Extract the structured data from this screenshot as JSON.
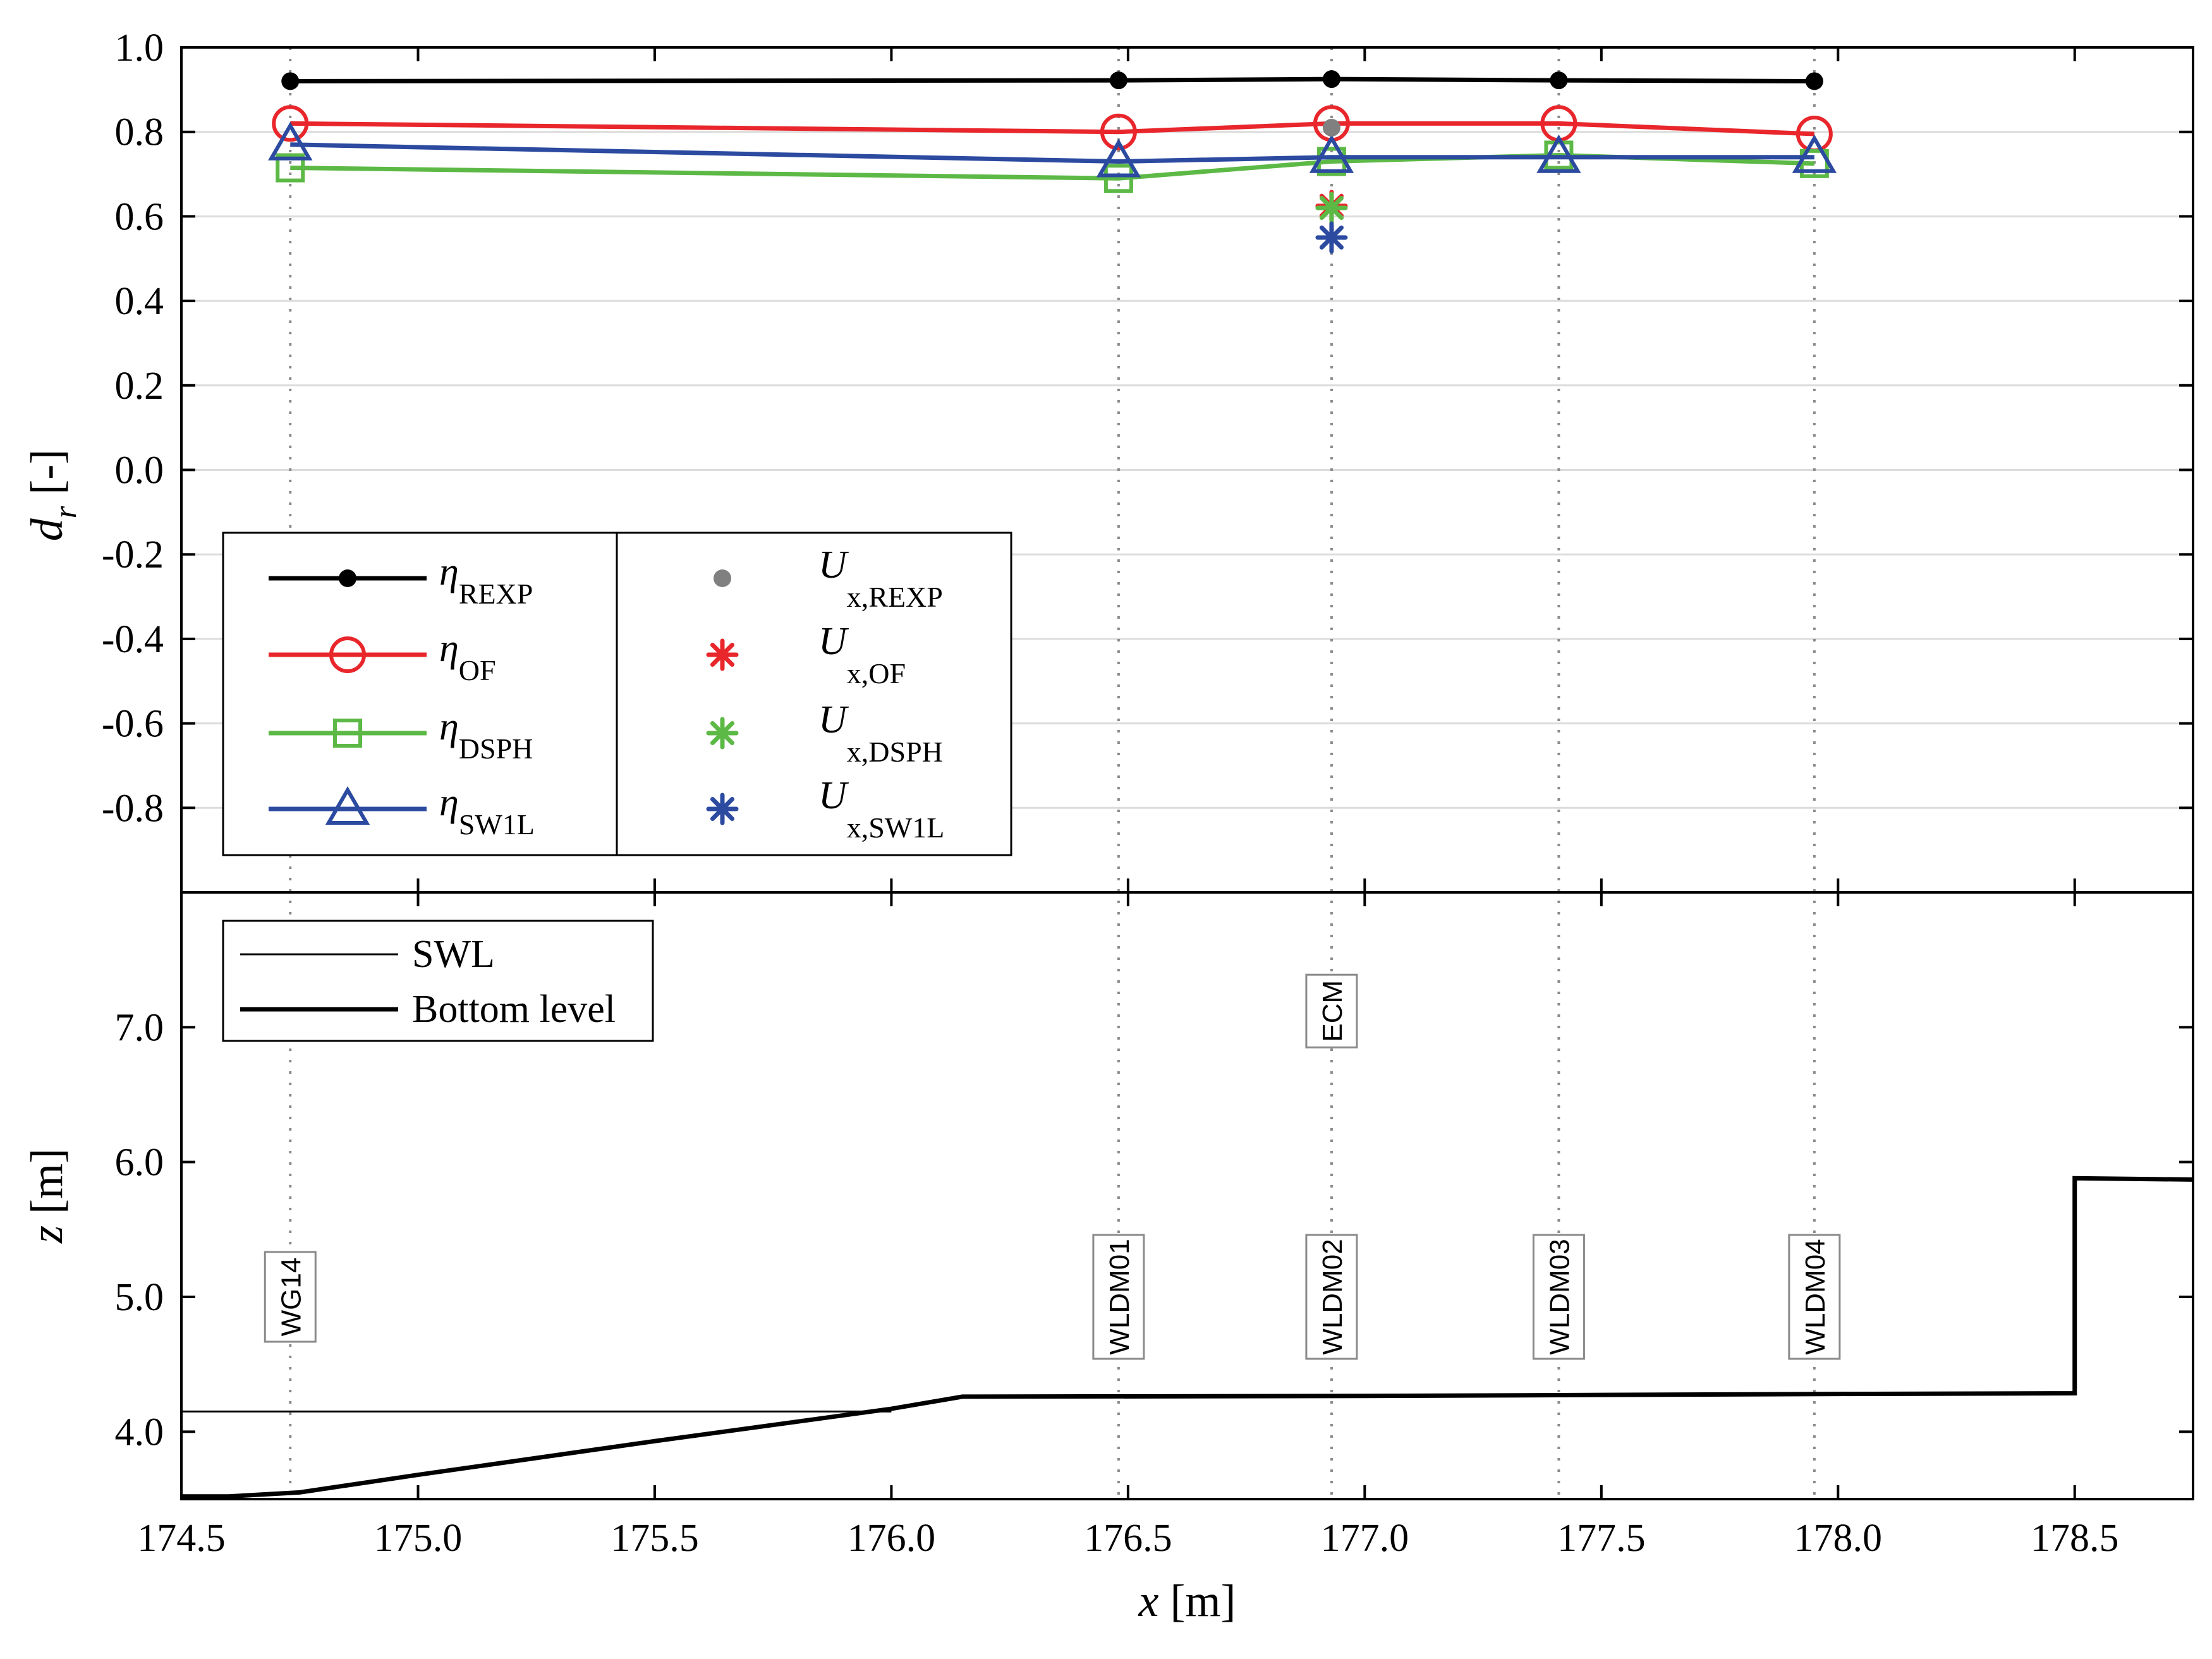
{
  "chart_data": [
    {
      "type": "line",
      "panel": "top",
      "ylabel": "d",
      "ylabel_sub": "r",
      "ylabel_unit": "[-]",
      "ylim": [
        -1.0,
        1.0
      ],
      "yticks": [
        "1.0",
        "0.8",
        "0.6",
        "0.4",
        "0.2",
        "0.0",
        "-0.2",
        "-0.4",
        "-0.6",
        "-0.8"
      ],
      "ytick_values": [
        1.0,
        0.8,
        0.6,
        0.4,
        0.2,
        0.0,
        -0.2,
        -0.4,
        -0.6,
        -0.8
      ],
      "grid": true,
      "x": [
        174.73,
        176.48,
        176.93,
        177.41,
        177.95
      ],
      "series": [
        {
          "name": "η",
          "sub": "REXP",
          "color": "#000000",
          "marker": "dot",
          "values": [
            0.92,
            0.922,
            0.925,
            0.922,
            0.92
          ]
        },
        {
          "name": "η",
          "sub": "OF",
          "color": "#e8262b",
          "marker": "circle",
          "values": [
            0.82,
            0.8,
            0.82,
            0.82,
            0.795
          ]
        },
        {
          "name": "η",
          "sub": "DSPH",
          "color": "#5db946",
          "marker": "square",
          "values": [
            0.715,
            0.69,
            0.73,
            0.745,
            0.725
          ]
        },
        {
          "name": "η",
          "sub": "SW1L",
          "color": "#2b4aa0",
          "marker": "triangle",
          "values": [
            0.77,
            0.73,
            0.74,
            0.74,
            0.74
          ]
        }
      ],
      "velocity_points": [
        {
          "name": "U",
          "sub": "x,REXP",
          "color": "#808080",
          "marker": "dot",
          "x": 176.93,
          "value": 0.81
        },
        {
          "name": "U",
          "sub": "x,OF",
          "color": "#e8262b",
          "marker": "asterisk",
          "x": 176.93,
          "value": 0.625
        },
        {
          "name": "U",
          "sub": "x,DSPH",
          "color": "#5db946",
          "marker": "asterisk",
          "x": 176.93,
          "value": 0.62
        },
        {
          "name": "U",
          "sub": "x,SW1L",
          "color": "#2b4aa0",
          "marker": "asterisk",
          "x": 176.93,
          "value": 0.55
        }
      ],
      "legend_location": "lower-left"
    },
    {
      "type": "line",
      "panel": "bottom",
      "xlabel": "x",
      "xlabel_unit": "[m]",
      "ylabel": "z",
      "ylabel_unit": "[m]",
      "xlim": [
        174.5,
        178.75
      ],
      "xticks": [
        "174.5",
        "175.0",
        "175.5",
        "176.0",
        "176.5",
        "177.0",
        "177.5",
        "178.0",
        "178.5"
      ],
      "xtick_values": [
        174.5,
        175.0,
        175.5,
        176.0,
        176.5,
        177.0,
        177.5,
        178.0,
        178.5
      ],
      "ylim": [
        3.5,
        8.0
      ],
      "yticks": [
        "7.0",
        "6.0",
        "5.0",
        "4.0"
      ],
      "ytick_values": [
        7.0,
        6.0,
        5.0,
        4.0
      ],
      "series": [
        {
          "name": "SWL",
          "color": "#000000",
          "style": "thin",
          "x": [
            174.5,
            176.0
          ],
          "values": [
            4.15,
            4.15
          ]
        },
        {
          "name": "Bottom level",
          "color": "#000000",
          "style": "thick",
          "x": [
            174.5,
            174.6,
            174.75,
            175.0,
            175.5,
            176.0,
            176.15,
            177.0,
            178.0,
            178.5,
            178.5,
            178.75
          ],
          "values": [
            3.52,
            3.52,
            3.55,
            3.68,
            3.93,
            4.17,
            4.26,
            4.265,
            4.28,
            4.285,
            5.88,
            5.87
          ]
        }
      ],
      "sensors": [
        {
          "label": "WG14",
          "x": 174.73,
          "y": 5.0
        },
        {
          "label": "WLDM01",
          "x": 176.48,
          "y": 5.0
        },
        {
          "label": "WLDM02",
          "x": 176.93,
          "y": 5.0
        },
        {
          "label": "ECM",
          "x": 176.93,
          "y": 7.12
        },
        {
          "label": "WLDM03",
          "x": 177.41,
          "y": 5.0
        },
        {
          "label": "WLDM04",
          "x": 177.95,
          "y": 5.0
        }
      ],
      "legend_location": "top-left"
    }
  ]
}
